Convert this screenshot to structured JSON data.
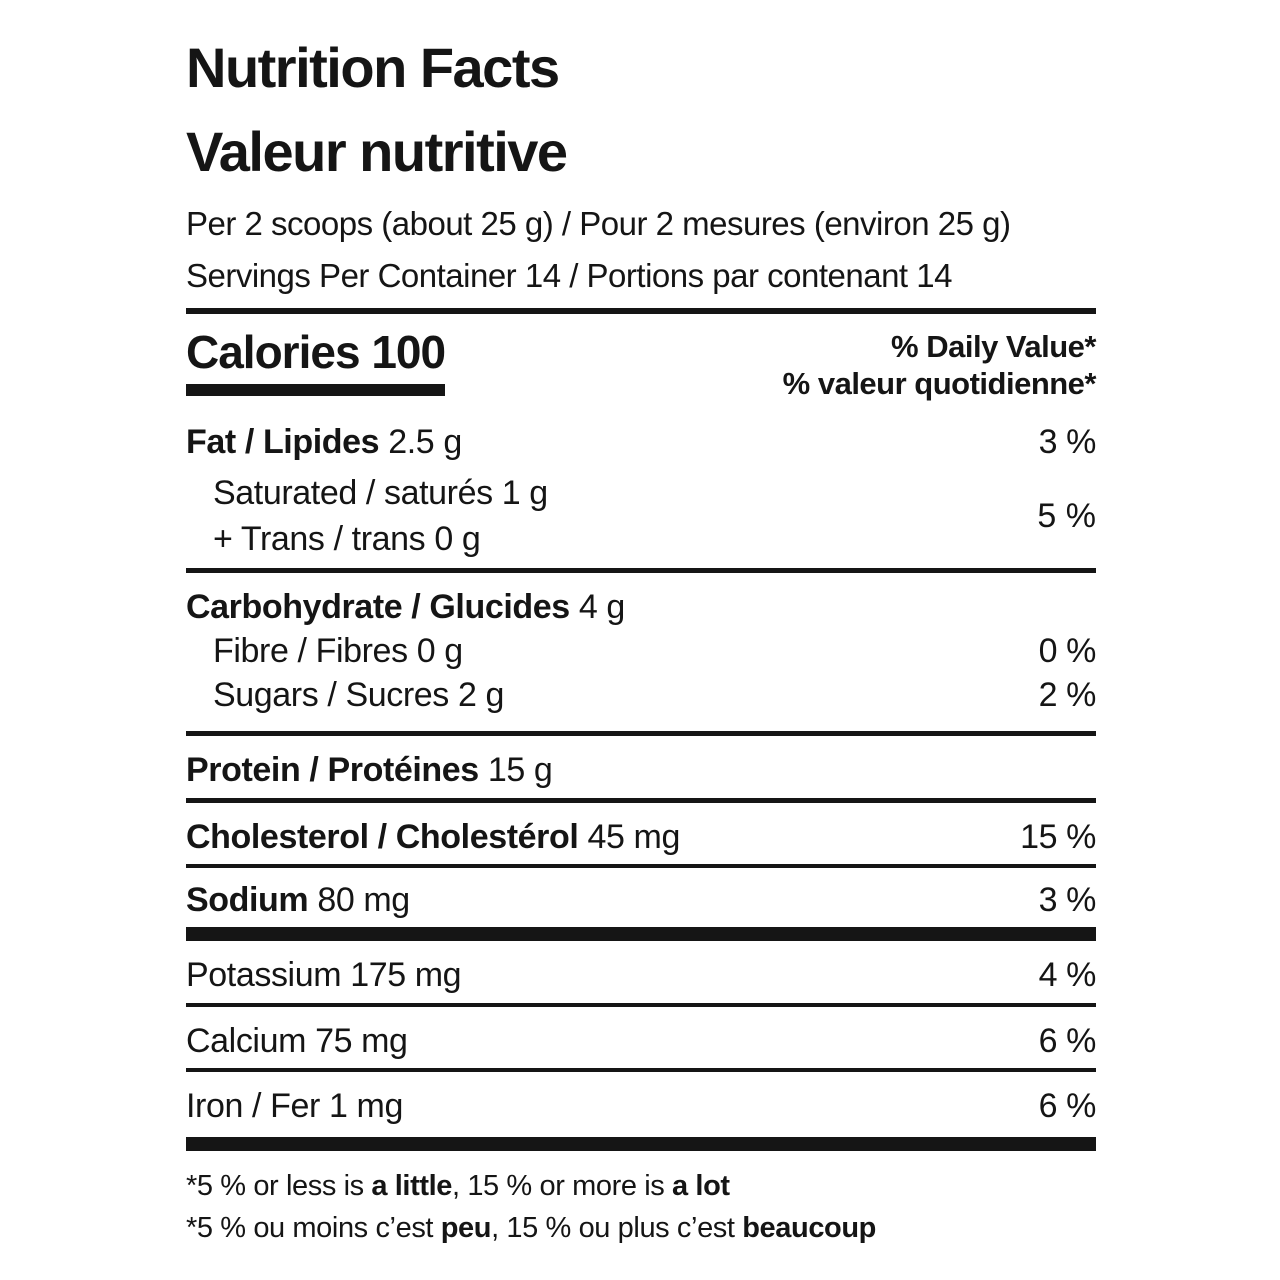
{
  "nutrition_label": {
    "title_en": "Nutrition Facts",
    "title_fr": "Valeur nutritive",
    "serving_size_line": "Per 2 scoops (about 25 g) / Pour 2 mesures (environ 25 g)",
    "servings_per_container_line": "Servings Per Container 14 / Portions par contenant 14",
    "calories": {
      "label": "Calories",
      "value": "100"
    },
    "daily_value_header_en": "% Daily Value*",
    "daily_value_header_fr": "% valeur quotidienne*",
    "rows": {
      "fat": {
        "name": "Fat / Lipides",
        "amount": "2.5 g",
        "percent": "3 %"
      },
      "saturated": {
        "name": "Saturated / saturés",
        "amount": "1 g"
      },
      "trans": {
        "name": "+ Trans / trans",
        "amount": "0 g"
      },
      "saturated_trans_percent": "5 %",
      "carbohydrate": {
        "name": "Carbohydrate / Glucides",
        "amount": "4 g"
      },
      "fibre": {
        "name": "Fibre / Fibres",
        "amount": "0 g",
        "percent": "0 %"
      },
      "sugars": {
        "name": "Sugars / Sucres",
        "amount": "2 g",
        "percent": "2 %"
      },
      "protein": {
        "name": "Protein / Protéines",
        "amount": "15 g"
      },
      "cholesterol": {
        "name": "Cholesterol / Cholestérol",
        "amount": "45 mg",
        "percent": "15 %"
      },
      "sodium": {
        "name": "Sodium",
        "amount": "80 mg",
        "percent": "3 %"
      },
      "potassium": {
        "name": "Potassium",
        "amount": "175 mg",
        "percent": "4 %"
      },
      "calcium": {
        "name": "Calcium",
        "amount": "75 mg",
        "percent": "6 %"
      },
      "iron": {
        "name": "Iron / Fer",
        "amount": "1 mg",
        "percent": "6 %"
      }
    },
    "footnote_en": {
      "part1": "*5 % or less is ",
      "bold1": "a little",
      "part2": ", 15 % or more is ",
      "bold2": "a lot"
    },
    "footnote_fr": {
      "part1": "*5 % ou moins c’est ",
      "bold1": "peu",
      "part2": ", 15 % ou plus c’est ",
      "bold2": "beaucoup"
    },
    "colors": {
      "ink": "#151515",
      "background": "#ffffff"
    }
  }
}
